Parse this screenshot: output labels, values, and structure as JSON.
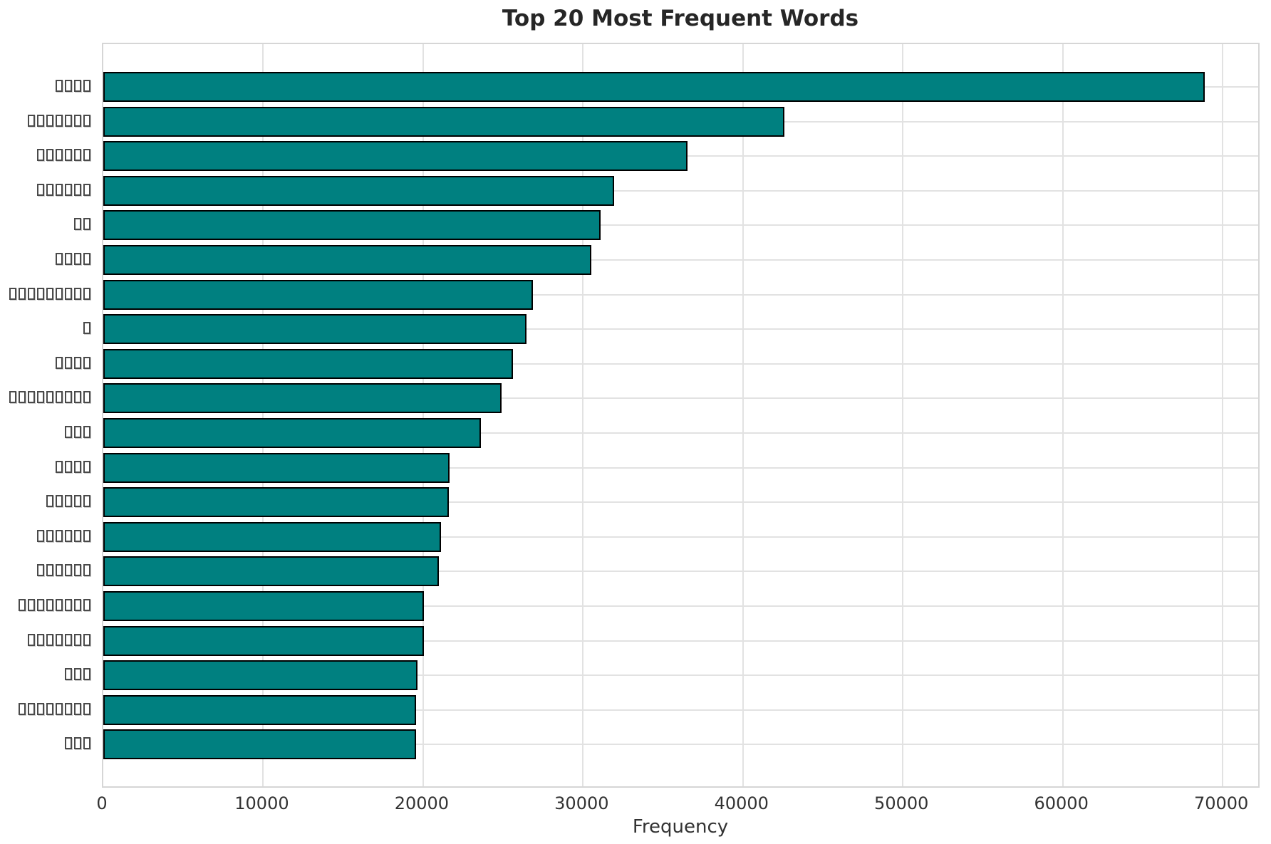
{
  "title": "Top 20 Most Frequent Words",
  "chart_data": {
    "type": "bar",
    "orientation": "horizontal",
    "title": "Top 20 Most Frequent Words",
    "xlabel": "Frequency",
    "ylabel": "",
    "categories": [
      "□□□□",
      "□□□□□□□",
      "□□□□□□",
      "□□□□□□",
      "□□",
      "□□□□",
      "□□□□□□□□□",
      "□",
      "□□□□",
      "□□□□□□□□□",
      "□□□",
      "□□□□",
      "□□□□□",
      "□□□□□□",
      "□□□□□□",
      "□□□□□□□□",
      "□□□□□□□",
      "□□□",
      "□□□□□□□□",
      "□□□"
    ],
    "category_note": "y-axis labels render as missing-glyph tofu boxes; box counts per row: 4,7,6,6,2,4,9,1,4,9,3,4,5,6,6,8,7,3,8,3",
    "values": [
      68900,
      42600,
      36550,
      31950,
      31080,
      30500,
      26850,
      26470,
      25620,
      24890,
      23620,
      21660,
      21610,
      21140,
      20980,
      20050,
      20030,
      19660,
      19570,
      19560
    ],
    "xlim": [
      0,
      72400
    ],
    "xticks": [
      0,
      10000,
      20000,
      30000,
      40000,
      50000,
      60000,
      70000
    ],
    "grid": true,
    "legend": false,
    "colors": {
      "bar_fill": "#008080",
      "bar_edge": "#000000",
      "grid": "#e2e2e2",
      "spine": "#d6d6d6",
      "title": "#262626",
      "tick": "#333333"
    }
  }
}
